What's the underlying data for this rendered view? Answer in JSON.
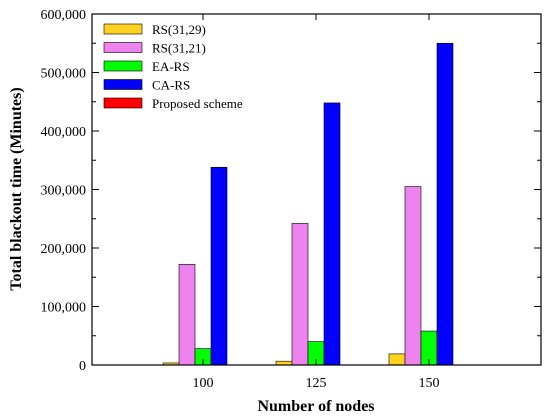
{
  "chart_data": {
    "type": "bar",
    "title": "",
    "xlabel": "Number of nodes",
    "ylabel": "Total blackout time (Minutes)",
    "categories": [
      "100",
      "125",
      "150"
    ],
    "ylim": [
      0,
      600000
    ],
    "yticks": [
      0,
      100000,
      200000,
      300000,
      400000,
      500000,
      600000
    ],
    "ytick_labels": [
      "0",
      "100,000",
      "200,000",
      "300,000",
      "400,000",
      "500,000",
      "600,000"
    ],
    "grid": false,
    "legend_position": "top-left",
    "series": [
      {
        "name": "RS(31,29)",
        "color": "#ffd21f",
        "values": [
          3500,
          6500,
          19000
        ]
      },
      {
        "name": "RS(31,21)",
        "color": "#ee82ee",
        "values": [
          172000,
          242000,
          305000
        ]
      },
      {
        "name": "EA-RS",
        "color": "#00ff00",
        "values": [
          28000,
          40000,
          58000
        ]
      },
      {
        "name": "CA-RS",
        "color": "#0000ff",
        "values": [
          338000,
          448000,
          550000
        ]
      },
      {
        "name": "Proposed scheme",
        "color": "#ff0000",
        "values": [
          0,
          0,
          0
        ]
      }
    ]
  }
}
